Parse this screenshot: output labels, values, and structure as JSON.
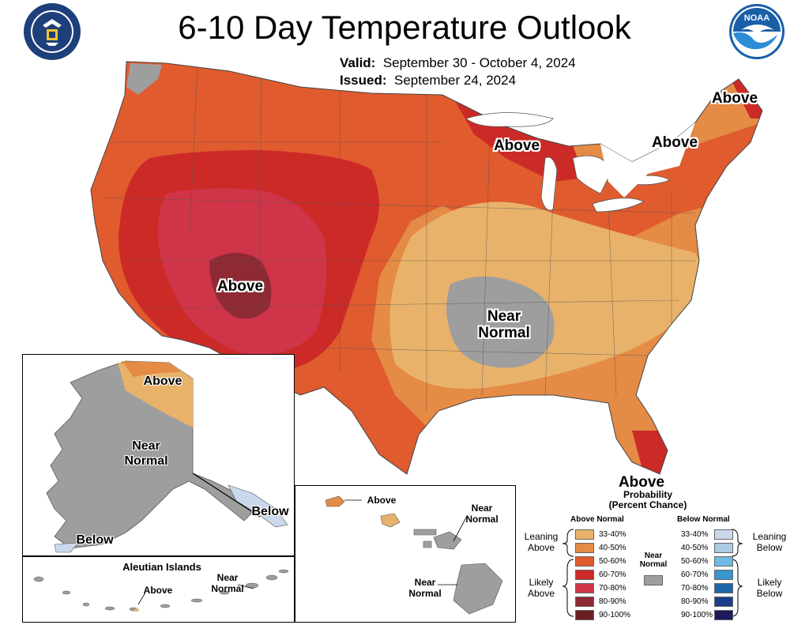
{
  "header": {
    "title": "6-10 Day Temperature Outlook",
    "valid_label": "Valid:",
    "valid_value": "September 30 - October 4, 2024",
    "issued_label": "Issued:",
    "issued_value": "September 24, 2024"
  },
  "logos": {
    "left": "dept-of-commerce-seal",
    "right": "noaa-logo"
  },
  "map_labels": {
    "above_southwest": "Above",
    "above_great_lakes": "Above",
    "above_northeast": "Above",
    "above_maine": "Above",
    "near_normal_central_1": "Near",
    "near_normal_central_2": "Normal",
    "above_florida": "Above"
  },
  "alaska": {
    "above": "Above",
    "near": "Near",
    "normal": "Normal",
    "below_southwest": "Below",
    "below_panhandle": "Below"
  },
  "aleutians": {
    "title": "Aleutian Islands",
    "above": "Above",
    "near": "Near",
    "normal": "Normal"
  },
  "hawaii": {
    "above": "Above",
    "near_ne": "Near",
    "normal_ne": "Normal",
    "near_s": "Near",
    "normal_s": "Normal"
  },
  "legend": {
    "title_line1": "Probability",
    "title_line2": "(Percent Chance)",
    "above_header": "Above Normal",
    "below_header": "Below Normal",
    "near_header_1": "Near",
    "near_header_2": "Normal",
    "leaning_above_1": "Leaning",
    "leaning_above_2": "Above",
    "likely_above_1": "Likely",
    "likely_above_2": "Above",
    "leaning_below_1": "Leaning",
    "leaning_below_2": "Below",
    "likely_below_1": "Likely",
    "likely_below_2": "Below",
    "above_bins": [
      "33-40%",
      "40-50%",
      "50-60%",
      "60-70%",
      "70-80%",
      "80-90%",
      "90-100%"
    ],
    "below_bins": [
      "33-40%",
      "40-50%",
      "50-60%",
      "60-70%",
      "70-80%",
      "80-90%",
      "90-100%"
    ],
    "above_colors": [
      "#E9B26A",
      "#E48B46",
      "#E05B2E",
      "#CC2A27",
      "#D03448",
      "#8E2A34",
      "#6B1E22"
    ],
    "below_colors": [
      "#C9D8EC",
      "#A9CBE4",
      "#6FB9E4",
      "#3A95CF",
      "#1E67A7",
      "#1B3C8A",
      "#1C1A5C"
    ],
    "near_color": "#9E9E9E"
  }
}
